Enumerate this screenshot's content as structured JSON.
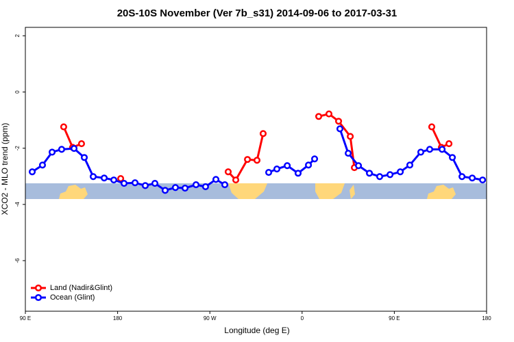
{
  "chart_data": {
    "type": "line",
    "title": "20S-10S November (Ver 7b_s31)   2014-09-06 to 2017-03-31",
    "x_label": "Longitude (deg E)",
    "y_label": "XCO2 - MLO trend (ppm)",
    "xlim": [
      90,
      540
    ],
    "ylim": [
      -7.8,
      2.3
    ],
    "xticks": [
      {
        "value": 90,
        "label": "90 E"
      },
      {
        "value": 180,
        "label": "180"
      },
      {
        "value": 270,
        "label": "90 W"
      },
      {
        "value": 360,
        "label": "0"
      },
      {
        "value": 450,
        "label": "90 E"
      },
      {
        "value": 540,
        "label": "180"
      }
    ],
    "yticks": [
      2,
      0,
      -2,
      -4,
      -6
    ],
    "legend": "bottom-left",
    "series": [
      {
        "name": "Land (Nadir&Glint)",
        "color": "#ff0000",
        "x": [
          127.4,
          136.1,
          144.8,
          null,
          183.0,
          null,
          287.9,
          295.3,
          306.7,
          316.0,
          322.0,
          null,
          376.2,
          386.2,
          395.6,
          407.0,
          411.0,
          null,
          486.5,
          495.9,
          503.3
        ],
        "values": [
          -1.24,
          -1.97,
          -1.84,
          null,
          -3.08,
          null,
          -2.84,
          -3.13,
          -2.4,
          -2.43,
          -1.48,
          null,
          -0.87,
          -0.78,
          -1.04,
          -1.58,
          -2.69,
          null,
          -1.24,
          -1.97,
          -1.84
        ]
      },
      {
        "name": "Ocean (Glint)",
        "color": "#0000ff",
        "x": [
          96.7,
          106.7,
          116.1,
          125.4,
          137.5,
          147.5,
          156.2,
          166.9,
          176.3,
          186.3,
          197.0,
          207.0,
          216.4,
          226.4,
          236.4,
          245.8,
          256.5,
          265.8,
          275.9,
          284.6,
          null,
          327.4,
          335.4,
          345.5,
          356.1,
          366.2,
          372.2,
          null,
          396.9,
          405.0,
          415.0,
          425.7,
          435.7,
          445.8,
          455.8,
          465.1,
          475.8,
          484.5,
          496.6,
          506.6,
          516.0,
          526.0,
          536.1
        ],
        "values": [
          -2.84,
          -2.6,
          -2.14,
          -2.04,
          -2.01,
          -2.33,
          -3.01,
          -3.06,
          -3.13,
          -3.25,
          -3.23,
          -3.33,
          -3.25,
          -3.5,
          -3.4,
          -3.42,
          -3.3,
          -3.37,
          -3.11,
          -3.3,
          null,
          -2.86,
          -2.74,
          -2.62,
          -2.89,
          -2.6,
          -2.38,
          null,
          -1.31,
          -2.18,
          -2.62,
          -2.89,
          -3.01,
          -2.94,
          -2.84,
          -2.6,
          -2.14,
          -2.04,
          -2.04,
          -2.33,
          -3.01,
          -3.06,
          -3.13
        ]
      }
    ]
  }
}
